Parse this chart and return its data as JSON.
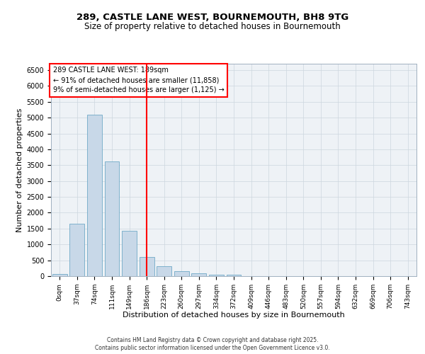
{
  "title_line1": "289, CASTLE LANE WEST, BOURNEMOUTH, BH8 9TG",
  "title_line2": "Size of property relative to detached houses in Bournemouth",
  "xlabel": "Distribution of detached houses by size in Bournemouth",
  "ylabel": "Number of detached properties",
  "bar_color": "#c8d8e8",
  "bar_edge_color": "#5b9fc0",
  "vline_color": "red",
  "vline_x": 5,
  "annotation_text": "289 CASTLE LANE WEST: 189sqm\n← 91% of detached houses are smaller (11,858)\n9% of semi-detached houses are larger (1,125) →",
  "categories": [
    "0sqm",
    "37sqm",
    "74sqm",
    "111sqm",
    "149sqm",
    "186sqm",
    "223sqm",
    "260sqm",
    "297sqm",
    "334sqm",
    "372sqm",
    "409sqm",
    "446sqm",
    "483sqm",
    "520sqm",
    "557sqm",
    "594sqm",
    "632sqm",
    "669sqm",
    "706sqm",
    "743sqm"
  ],
  "bar_heights": [
    75,
    1650,
    5100,
    3620,
    1420,
    610,
    310,
    155,
    95,
    55,
    35,
    0,
    0,
    0,
    0,
    0,
    0,
    0,
    0,
    0,
    0
  ],
  "ylim": [
    0,
    6700
  ],
  "yticks": [
    0,
    500,
    1000,
    1500,
    2000,
    2500,
    3000,
    3500,
    4000,
    4500,
    5000,
    5500,
    6000,
    6500
  ],
  "footer_line1": "Contains HM Land Registry data © Crown copyright and database right 2025.",
  "footer_line2": "Contains public sector information licensed under the Open Government Licence v3.0.",
  "bg_color": "#eef2f6",
  "grid_color": "#ccd6de"
}
